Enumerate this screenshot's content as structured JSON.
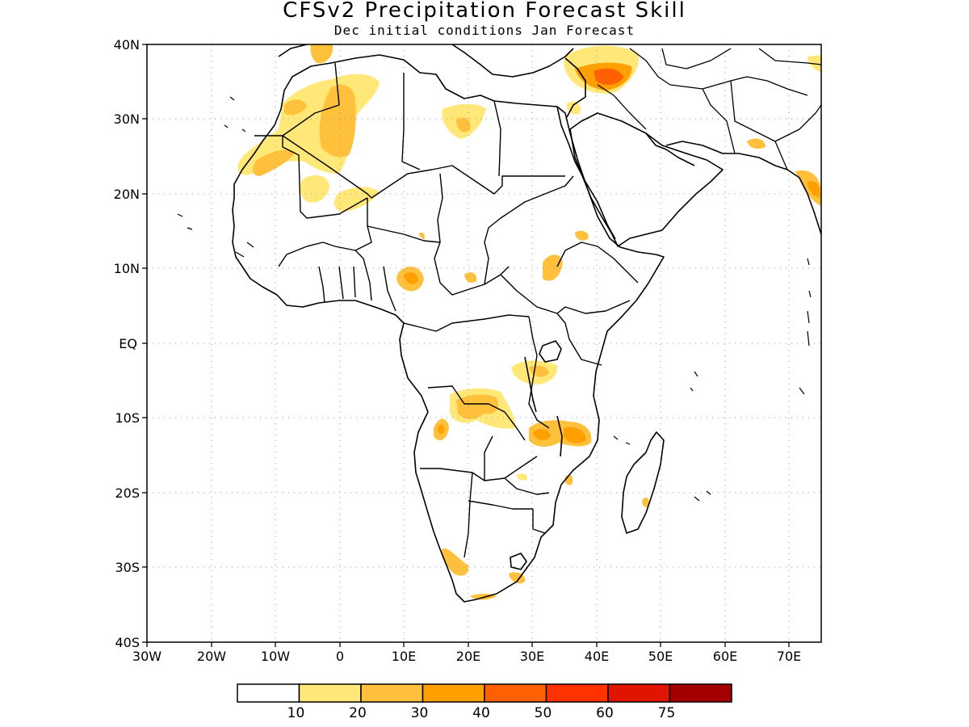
{
  "map": {
    "title": "CFSv2 Precipitation Forecast Skill",
    "subtitle": "Dec initial conditions  Jan Forecast",
    "lon_range": [
      -30,
      75
    ],
    "lat_range": [
      -40,
      40
    ],
    "y_ticks": [
      "40N",
      "30N",
      "20N",
      "10N",
      "EQ",
      "10S",
      "20S",
      "30S",
      "40S"
    ],
    "x_ticks": [
      "30W",
      "20W",
      "10W",
      "0",
      "10E",
      "20E",
      "30E",
      "40E",
      "50E",
      "60E",
      "70E"
    ],
    "grid": "dotted",
    "colorbar": {
      "labels": [
        "10",
        "20",
        "30",
        "40",
        "50",
        "60",
        "75"
      ],
      "colors": [
        "#ffffff",
        "#ffe878",
        "#ffc03c",
        "#ffa000",
        "#ff6000",
        "#ff3200",
        "#e11400",
        "#a50000"
      ]
    }
  }
}
